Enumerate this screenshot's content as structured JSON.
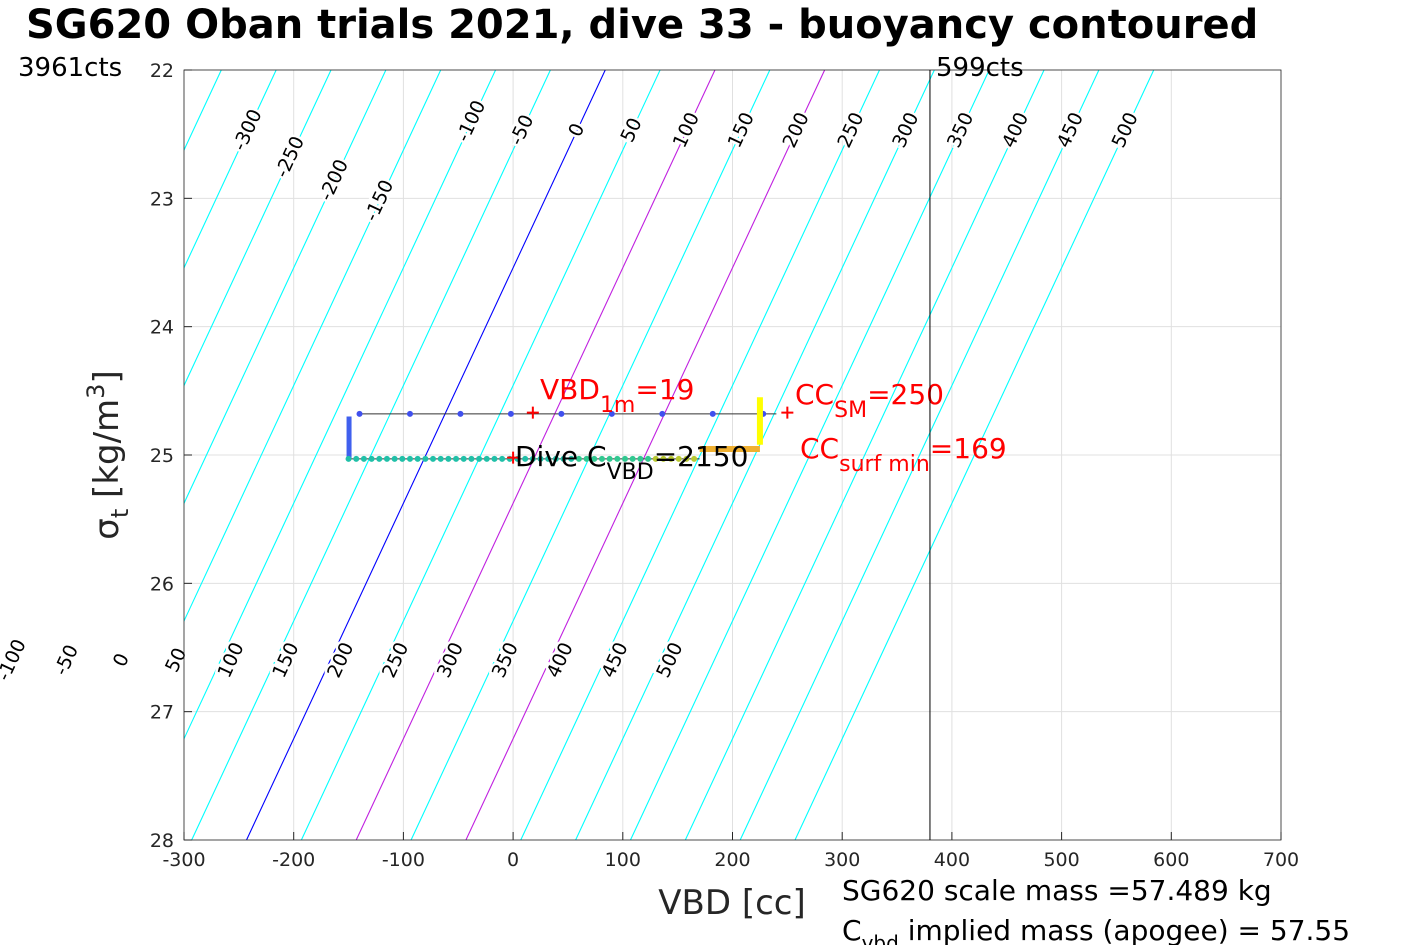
{
  "chart_data": {
    "type": "line",
    "title": "SG620 Oban trials 2021, dive 33 - buoyancy contoured",
    "xlabel": "VBD [cc]",
    "ylabel_main": "σ",
    "ylabel_sub": "t",
    "ylabel_units": "[kg/m",
    "ylabel_sup": "3",
    "ylabel_close": "]",
    "xlim": [
      -300,
      700
    ],
    "ylim": [
      22,
      28
    ],
    "y_reversed": true,
    "grid": true,
    "xticks": [
      "-300",
      "-200",
      "-100",
      "0",
      "100",
      "200",
      "300",
      "400",
      "500",
      "600",
      "700"
    ],
    "yticks": [
      "22",
      "23",
      "24",
      "25",
      "26",
      "27",
      "28"
    ],
    "contour_values": [
      -300,
      -250,
      -200,
      -150,
      -100,
      -50,
      0,
      50,
      100,
      150,
      200,
      250,
      300,
      350,
      400,
      450,
      500
    ],
    "contour_top_labels": [
      "-300",
      "-250",
      "-200",
      "-150",
      "-100",
      "-50",
      "0",
      "50",
      "100",
      "150",
      "200",
      "250",
      "300",
      "350",
      "400",
      "450",
      "500"
    ],
    "contour_bottom_labels": [
      "-100",
      "-50",
      "0",
      "50",
      "100",
      "150",
      "200",
      "250",
      "300",
      "350",
      "400",
      "450",
      "500"
    ],
    "contour_colors": {
      "default": "#00ffff",
      "zero": "#0000ff",
      "highlight": "#c020e0"
    },
    "vbd_limit_line": 380,
    "corner_left_label": "3961cts",
    "corner_right_label": "599cts",
    "dive_track": {
      "sigma": 25.03,
      "vbd_start": -150,
      "vbd_end": 170
    },
    "climb_track": {
      "sigma": 24.68,
      "vbd_start": -140,
      "vbd_end": 240
    },
    "annotations": {
      "vbd1m": {
        "text": "VBD",
        "sub": "1m",
        "value": "=19",
        "vbd": 18,
        "sigma": 24.67
      },
      "ccsm": {
        "text": "CC",
        "sub": "SM",
        "value": "=250",
        "vbd": 250,
        "sigma": 24.67
      },
      "ccsurf": {
        "text": "CC",
        "sub": "surf min",
        "value": "=169"
      },
      "dive_cvbd": {
        "text": "Dive C",
        "sub": "VBD",
        "value": "=2150",
        "vbd": 0,
        "sigma": 25.02
      }
    },
    "footer_line1": "SG620 scale mass =57.489 kg",
    "footer_line2_c": "C",
    "footer_line2_sub": "vbd",
    "footer_line2_rest": " implied mass (apogee) = 57.55"
  }
}
